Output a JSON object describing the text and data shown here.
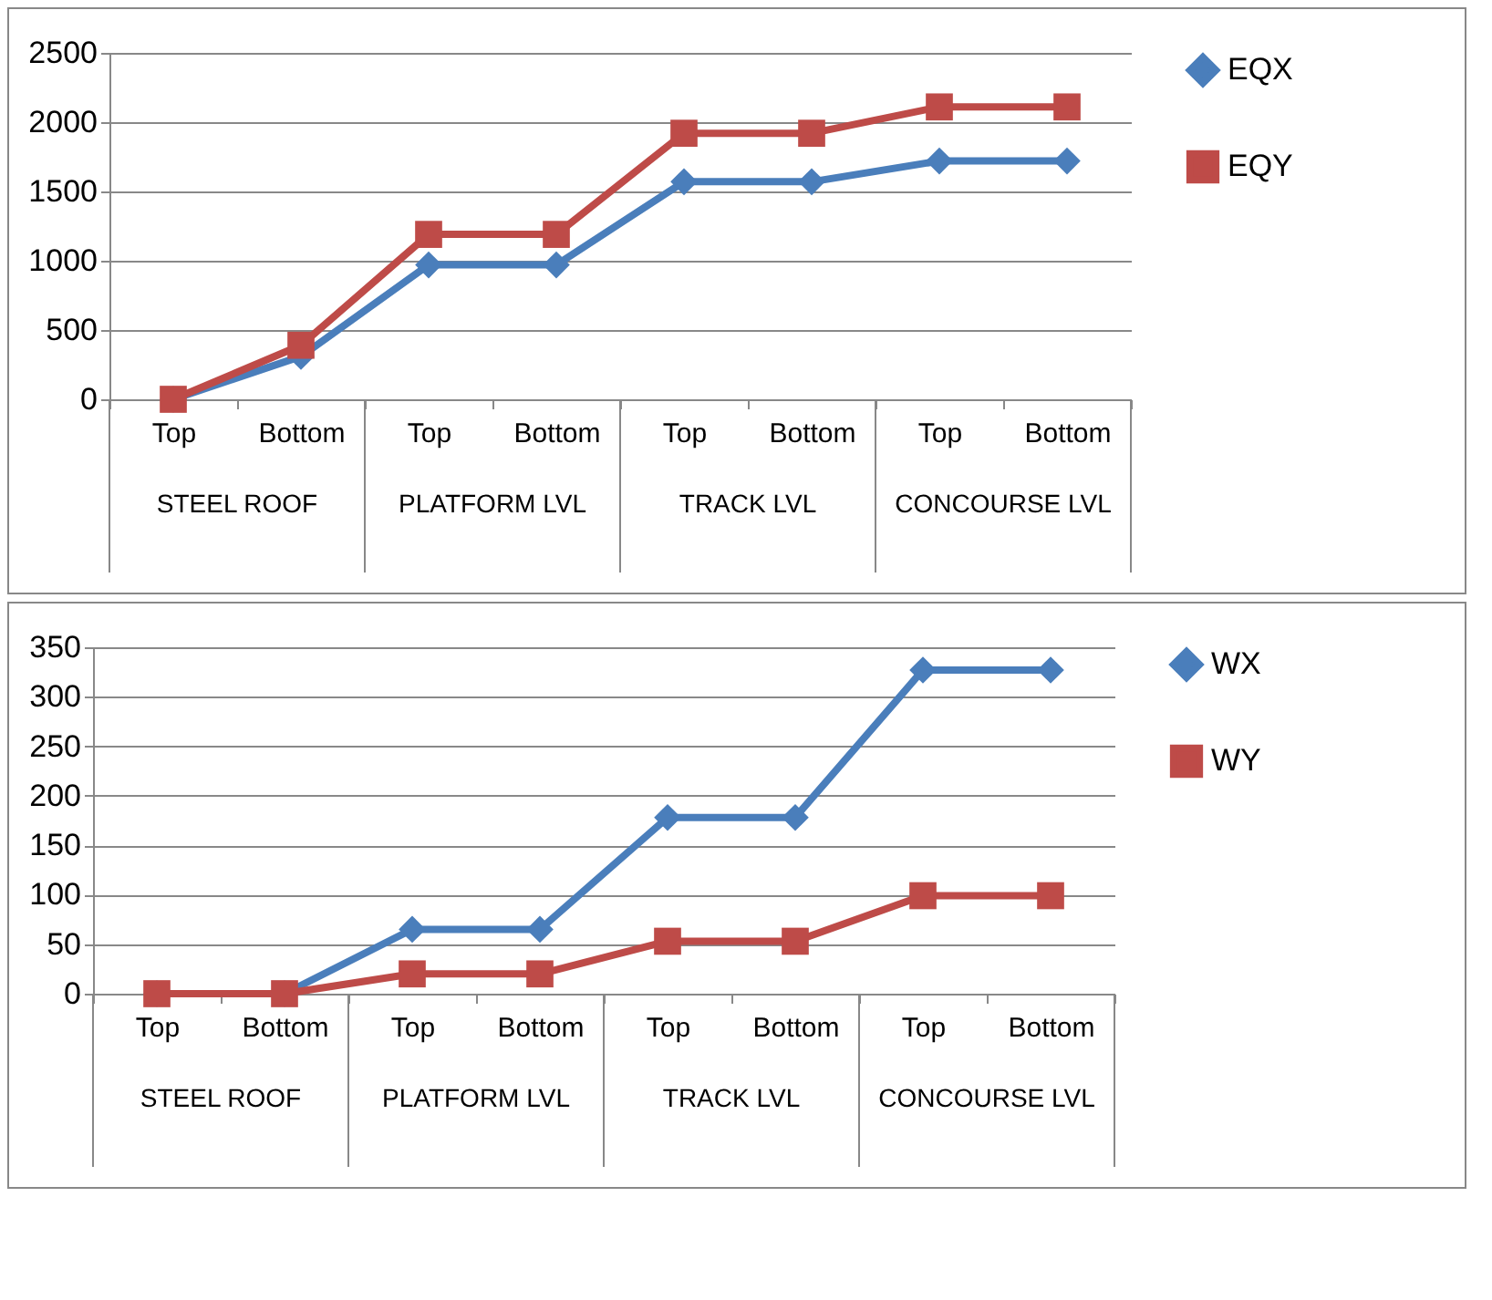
{
  "chart_data": [
    {
      "type": "line",
      "categories": [
        "Top",
        "Bottom",
        "Top",
        "Bottom",
        "Top",
        "Bottom",
        "Top",
        "Bottom"
      ],
      "annotations": [
        "STEEL ROOF",
        "PLATFORM LVL",
        "TRACK LVL",
        "CONCOURSE LVL"
      ],
      "series": [
        {
          "name": "EQX",
          "color": "#4a7ebb",
          "marker": "diamond",
          "values": [
            0,
            310,
            970,
            970,
            1570,
            1570,
            1720,
            1720
          ]
        },
        {
          "name": "EQY",
          "color": "#be4b48",
          "marker": "square",
          "values": [
            0,
            390,
            1190,
            1190,
            1920,
            1920,
            2110,
            2110
          ]
        }
      ],
      "ylim": [
        0,
        2500
      ],
      "yticks": [
        0,
        500,
        1000,
        1500,
        2000,
        2500
      ],
      "grid": "y",
      "legend": "right"
    },
    {
      "type": "line",
      "categories": [
        "Top",
        "Bottom",
        "Top",
        "Bottom",
        "Top",
        "Bottom",
        "Top",
        "Bottom"
      ],
      "annotations": [
        "STEEL ROOF",
        "PLATFORM LVL",
        "TRACK LVL",
        "CONCOURSE LVL"
      ],
      "series": [
        {
          "name": "WX",
          "color": "#4a7ebb",
          "marker": "diamond",
          "values": [
            0,
            0,
            65,
            65,
            178,
            178,
            327,
            327
          ]
        },
        {
          "name": "WY",
          "color": "#be4b48",
          "marker": "square",
          "values": [
            0,
            0,
            20,
            20,
            53,
            53,
            99,
            99
          ]
        }
      ],
      "ylim": [
        0,
        350
      ],
      "yticks": [
        0,
        50,
        100,
        150,
        200,
        250,
        300,
        350
      ],
      "grid": "y",
      "legend": "right"
    }
  ]
}
